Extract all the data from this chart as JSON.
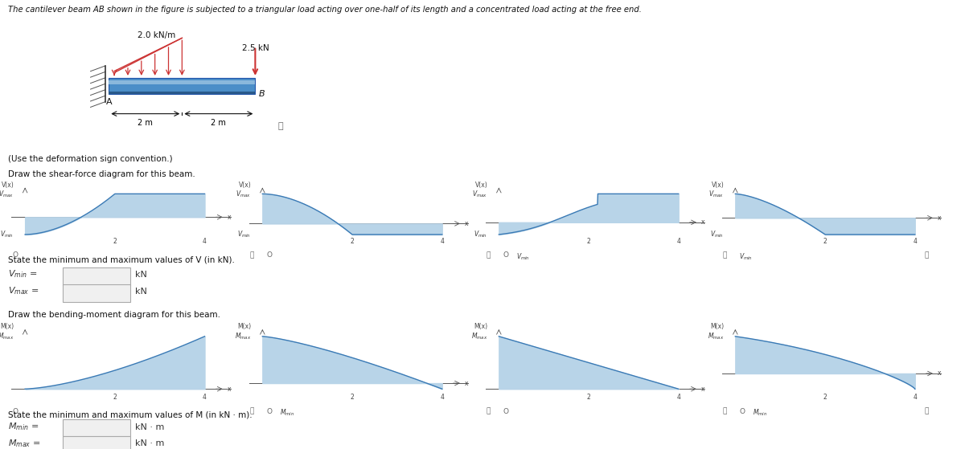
{
  "title_text": "The cantilever beam AB shown in the figure is subjected to a triangular load acting over one-half of its length and a concentrated load acting at the free end.",
  "tri_load_label": "2.0 kN/m",
  "conc_load_label": "2.5 kN",
  "label_A": "A",
  "label_B": "B",
  "dim1": "2 m",
  "dim2": "2 m",
  "shear_label": "Draw the shear-force diagram for this beam.",
  "moment_label": "Draw the bending-moment diagram for this beam.",
  "fill_color": "#b8d4e8",
  "line_color": "#3a7ab5",
  "bg_color": "#ffffff",
  "state_v_text": "State the minimum and maximum values of V (in kN).",
  "state_m_text": "State the minimum and maximum values of M (in kN · m).",
  "kN_label": "kN",
  "kNm_label": "kN · m",
  "use_deform": "(Use the deformation sign convention.)"
}
